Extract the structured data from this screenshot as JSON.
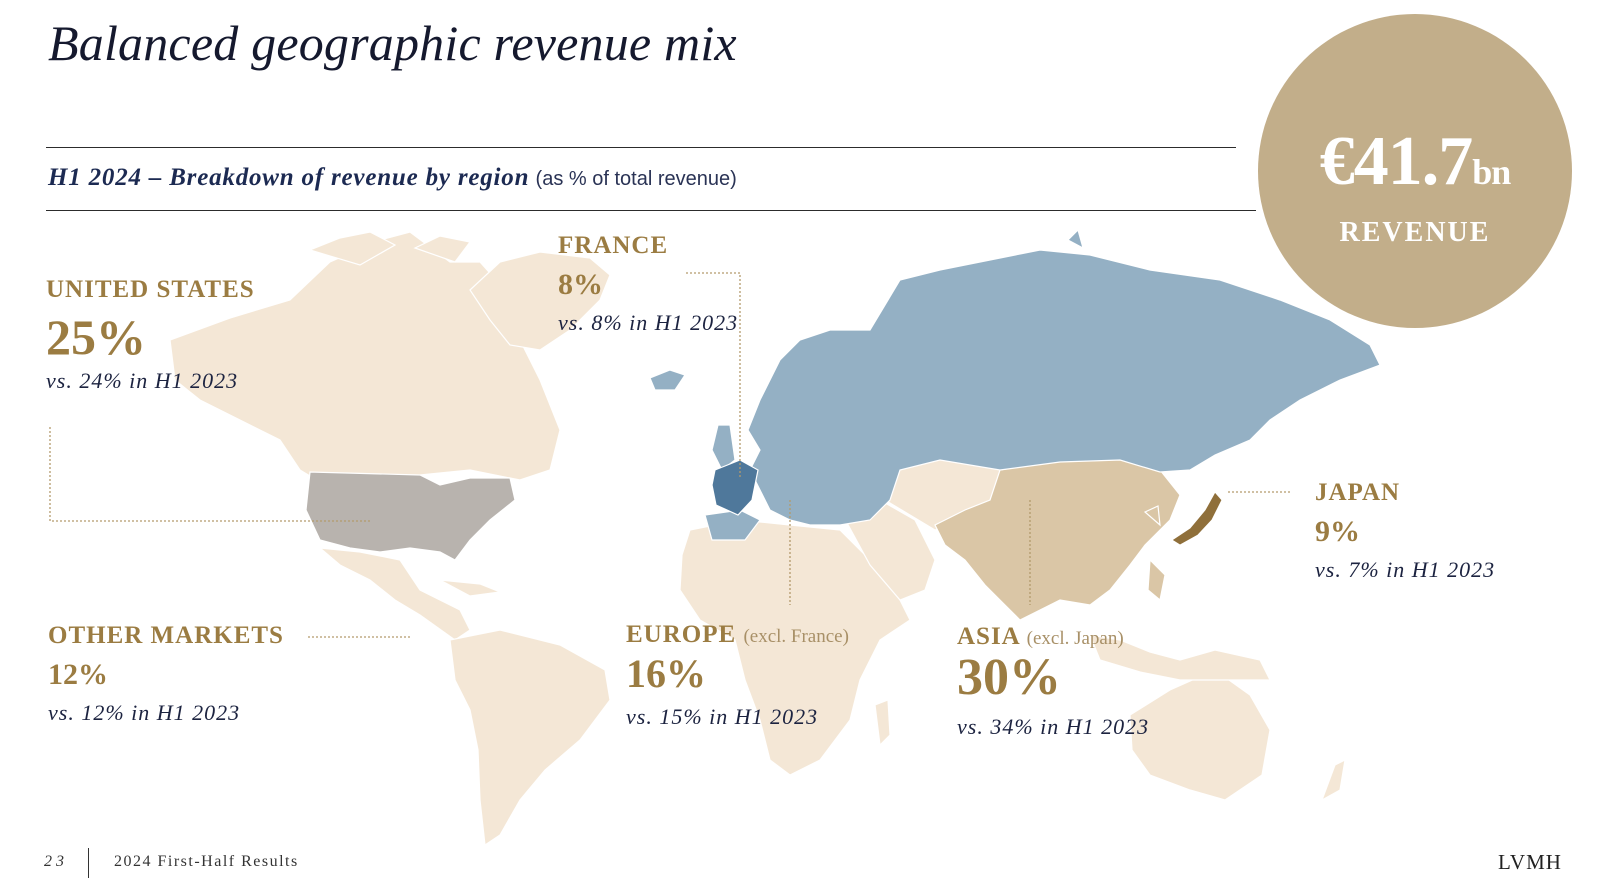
{
  "title": "Balanced geographic revenue mix",
  "subtitle": {
    "main": "H1 2024 – Breakdown of revenue by region",
    "note": "(as % of total revenue)"
  },
  "badge": {
    "value": "€41.7",
    "unit": "bn",
    "label": "REVENUE"
  },
  "regions": {
    "us": {
      "name": "UNITED STATES",
      "pct": "25%",
      "cmp": "vs. 24% in H1 2023",
      "share": 25,
      "color": "#b8b3ae"
    },
    "france": {
      "name": "FRANCE",
      "pct": "8%",
      "cmp": "vs. 8% in H1 2023",
      "share": 8,
      "color": "#4f789b"
    },
    "japan": {
      "name": "JAPAN",
      "pct": "9%",
      "cmp": "vs. 7% in H1 2023",
      "share": 9,
      "color": "#8f6f3a"
    },
    "other": {
      "name": "OTHER MARKETS",
      "pct": "12%",
      "cmp": "vs. 12% in H1 2023",
      "share": 12,
      "color": "#f4e7d6"
    },
    "europe": {
      "name": "EUROPE",
      "sub": "(excl. France)",
      "pct": "16%",
      "cmp": "vs. 15% in H1 2023",
      "share": 16,
      "color": "#94b0c4"
    },
    "asia": {
      "name": "ASIA",
      "sub": "(excl. Japan)",
      "pct": "30%",
      "cmp": "vs. 34% in H1 2023",
      "share": 30,
      "color": "#dac6a6"
    }
  },
  "footer": {
    "page": "23",
    "text": "2024 First-Half Results",
    "brand": "LVMH"
  }
}
